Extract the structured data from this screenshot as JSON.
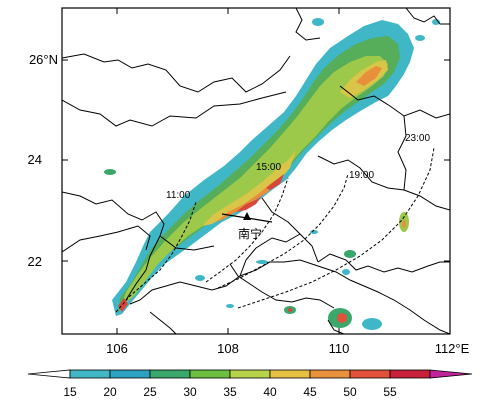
{
  "map": {
    "lon_ticks": [
      "106",
      "108",
      "110",
      "112°E"
    ],
    "lat_ticks": [
      "26°N",
      "24",
      "22"
    ],
    "city_label": "南宁",
    "isochrones": [
      {
        "time": "11:00"
      },
      {
        "time": "15:00"
      },
      {
        "time": "19:00"
      },
      {
        "time": "23:00"
      }
    ]
  },
  "colorbar": {
    "ticks": [
      "15",
      "20",
      "25",
      "30",
      "35",
      "40",
      "45",
      "50",
      "55"
    ],
    "colors": [
      "#ffffff",
      "#41b6c4",
      "#2ca2c0",
      "#3aa86a",
      "#6cbf3f",
      "#b7d34a",
      "#e6c040",
      "#e9903c",
      "#e2513a",
      "#c7203a",
      "#c0249a"
    ]
  }
}
